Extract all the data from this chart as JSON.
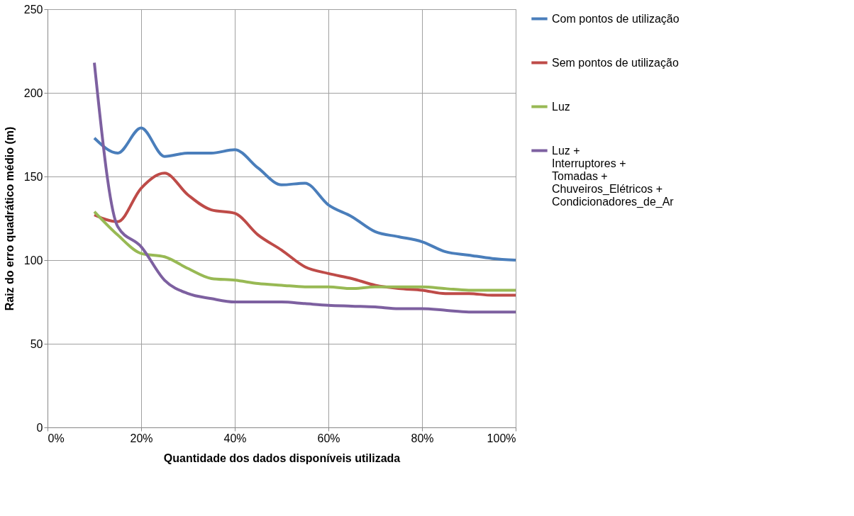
{
  "chart_data": {
    "type": "line",
    "xlabel": "Quantidade dos dados disponíveis utilizada",
    "ylabel": "Raiz do erro quadrático médio (m)",
    "x": [
      10,
      15,
      20,
      25,
      30,
      35,
      40,
      45,
      50,
      55,
      60,
      65,
      70,
      75,
      80,
      85,
      90,
      95,
      100
    ],
    "series": [
      {
        "name": "Com pontos de utilização",
        "color": "#4a7ebb",
        "values": [
          173,
          164,
          179,
          162,
          164,
          164,
          166,
          155,
          145,
          146,
          133,
          126,
          117,
          114,
          111,
          105,
          103,
          101,
          100
        ]
      },
      {
        "name": "Sem pontos de utilização",
        "color": "#be4b48",
        "values": [
          127,
          123,
          143,
          152,
          139,
          130,
          128,
          115,
          106,
          96,
          92,
          89,
          85,
          83,
          82,
          80,
          80,
          79,
          79
        ]
      },
      {
        "name": "Luz",
        "color": "#98b954",
        "values": [
          129,
          115,
          104,
          102,
          95,
          89,
          88,
          86,
          85,
          84,
          84,
          83,
          84,
          84,
          84,
          83,
          82,
          82,
          82
        ]
      },
      {
        "name": "Luz + Interruptores + Tomadas + Chuveiros_Elétricos + Condicionadores_de_Ar",
        "color": "#7d60a0",
        "values": [
          218,
          120,
          108,
          88,
          80,
          77,
          75,
          75,
          75,
          74,
          73,
          72.5,
          72,
          71,
          71,
          70,
          69,
          69,
          69
        ]
      }
    ],
    "xlim": [
      0,
      100
    ],
    "xticks": [
      {
        "value": 0,
        "label": "0%"
      },
      {
        "value": 20,
        "label": "20%"
      },
      {
        "value": 40,
        "label": "40%"
      },
      {
        "value": 60,
        "label": "60%"
      },
      {
        "value": 80,
        "label": "80%"
      },
      {
        "value": 100,
        "label": "100%"
      }
    ],
    "ylim": [
      0,
      250
    ],
    "yticks": [
      0,
      50,
      100,
      150,
      200,
      250
    ],
    "grid": true,
    "legend": "right",
    "marker": "none",
    "line_style": "solid"
  }
}
